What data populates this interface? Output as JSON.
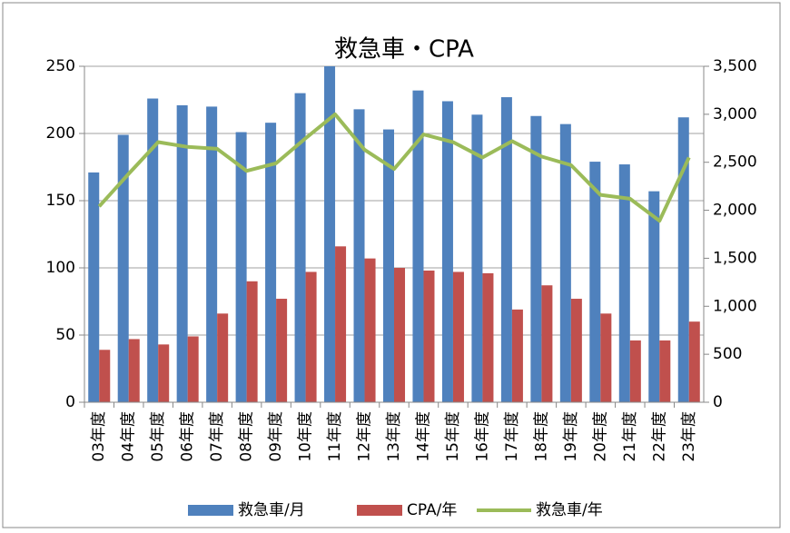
{
  "chart_data": {
    "type": "bar_line",
    "title": "救急車・CPA",
    "categories": [
      "03年度",
      "04年度",
      "05年度",
      "06年度",
      "07年度",
      "08年度",
      "09年度",
      "10年度",
      "11年度",
      "12年度",
      "13年度",
      "14年度",
      "15年度",
      "16年度",
      "17年度",
      "18年度",
      "19年度",
      "20年度",
      "21年度",
      "22年度",
      "23年度"
    ],
    "series": [
      {
        "name": "救急車/月",
        "type": "bar",
        "color": "#4f81bd",
        "values": [
          171,
          199,
          226,
          221,
          220,
          201,
          208,
          230,
          250,
          218,
          203,
          232,
          224,
          214,
          227,
          213,
          207,
          179,
          177,
          157,
          212
        ]
      },
      {
        "name": "CPA/年",
        "type": "bar",
        "color": "#c0504d",
        "values": [
          39,
          47,
          43,
          49,
          66,
          90,
          77,
          97,
          116,
          107,
          100,
          98,
          97,
          96,
          69,
          87,
          77,
          66,
          46,
          46,
          60
        ]
      },
      {
        "name": "救急車/年",
        "type": "line",
        "axis": "y2",
        "color": "#9bbb59",
        "values": [
          2040,
          2380,
          2710,
          2660,
          2640,
          2410,
          2490,
          2750,
          3000,
          2630,
          2430,
          2790,
          2710,
          2550,
          2720,
          2560,
          2470,
          2160,
          2120,
          1890,
          2550
        ]
      }
    ],
    "ylim": [
      0,
      250
    ],
    "yticks": [
      0,
      50,
      100,
      150,
      200,
      250
    ],
    "y2lim": [
      0,
      3500
    ],
    "y2ticks": [
      0,
      500,
      {
        "value": 1000,
        "label": "1,000"
      },
      {
        "value": 1500,
        "label": "1,500"
      },
      {
        "value": 2000,
        "label": "2,000"
      },
      {
        "value": 2500,
        "label": "2,500"
      },
      {
        "value": 3000,
        "label": "3,000"
      },
      {
        "value": 3500,
        "label": "3,500"
      }
    ],
    "grid": true,
    "legend": "bottom"
  }
}
